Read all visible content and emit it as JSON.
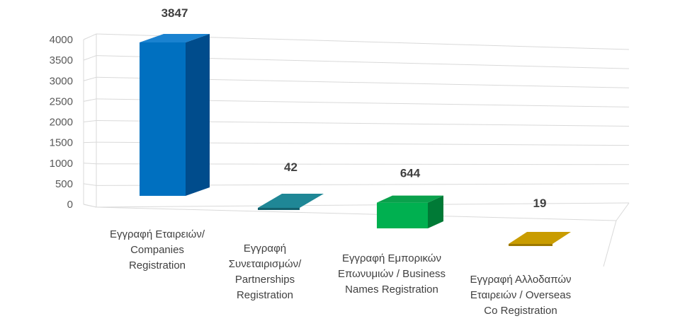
{
  "chart_data": {
    "type": "bar",
    "categories": [
      [
        "Εγγραφή Εταιρειών/",
        "Companies",
        "Registration"
      ],
      [
        "Εγγραφή",
        "Συνεταιρισμών/",
        "Partnerships",
        "Registration"
      ],
      [
        "Εγγραφή Εμπορικών",
        "Επωνυμιών / Business",
        "Names Registration"
      ],
      [
        "Εγγραφή Αλλοδαπών",
        "Εταιρειών / Overseas",
        "Co Registration"
      ]
    ],
    "values": [
      3847,
      42,
      644,
      19
    ],
    "data_labels": [
      "3847",
      "42",
      "644",
      "19"
    ],
    "ylim": [
      0,
      4000
    ],
    "yticks": [
      "0",
      "500",
      "1000",
      "1500",
      "2000",
      "2500",
      "3000",
      "3500",
      "4000"
    ],
    "grid": true,
    "colors": [
      {
        "front": "#0070c0",
        "side": "#004c8c",
        "top": "#1a82d0"
      },
      {
        "front": "#1e8a9a",
        "side": "#13606c",
        "top": "#1f8796"
      },
      {
        "front": "#00b050",
        "side": "#007a36",
        "top": "#0aa14c"
      },
      {
        "front": "#d9a800",
        "side": "#9c7800",
        "top": "#c99c00"
      }
    ]
  }
}
